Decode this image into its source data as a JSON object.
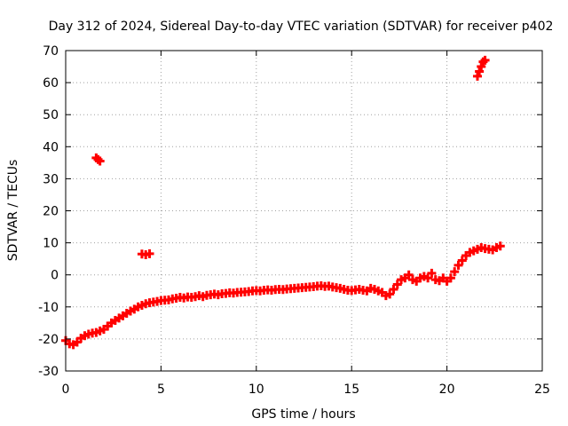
{
  "chart_data": {
    "type": "scatter",
    "title": "Day 312 of 2024, Sidereal Day-to-day VTEC variation (SDTVAR) for receiver p402",
    "xlabel": "GPS time / hours",
    "ylabel": "SDTVAR / TECUs",
    "xlim": [
      0,
      25
    ],
    "ylim": [
      -30,
      70
    ],
    "xticks": [
      0,
      5,
      10,
      15,
      20,
      25
    ],
    "yticks": [
      -30,
      -20,
      -10,
      0,
      10,
      20,
      30,
      40,
      50,
      60,
      70
    ],
    "grid": true,
    "series": [
      {
        "name": "SDTVAR",
        "color": "#ff0000",
        "points": [
          [
            0.0,
            -20.5
          ],
          [
            0.2,
            -21.5
          ],
          [
            0.4,
            -21.8
          ],
          [
            0.6,
            -21.0
          ],
          [
            0.8,
            -19.8
          ],
          [
            1.0,
            -19.0
          ],
          [
            1.2,
            -18.5
          ],
          [
            1.4,
            -18.2
          ],
          [
            1.6,
            -18.0
          ],
          [
            1.8,
            -17.5
          ],
          [
            2.0,
            -17.0
          ],
          [
            2.2,
            -16.0
          ],
          [
            2.4,
            -15.0
          ],
          [
            2.6,
            -14.2
          ],
          [
            2.8,
            -13.5
          ],
          [
            3.0,
            -12.8
          ],
          [
            3.2,
            -12.0
          ],
          [
            3.4,
            -11.3
          ],
          [
            3.6,
            -10.7
          ],
          [
            3.8,
            -10.0
          ],
          [
            4.0,
            -9.5
          ],
          [
            4.2,
            -9.0
          ],
          [
            4.4,
            -8.7
          ],
          [
            4.6,
            -8.5
          ],
          [
            4.8,
            -8.3
          ],
          [
            5.0,
            -8.0
          ],
          [
            5.2,
            -7.9
          ],
          [
            5.4,
            -7.8
          ],
          [
            5.6,
            -7.5
          ],
          [
            5.8,
            -7.3
          ],
          [
            6.0,
            -7.0
          ],
          [
            6.2,
            -7.2
          ],
          [
            6.4,
            -6.9
          ],
          [
            6.6,
            -7.0
          ],
          [
            6.8,
            -6.8
          ],
          [
            7.0,
            -6.5
          ],
          [
            7.2,
            -6.8
          ],
          [
            7.4,
            -6.4
          ],
          [
            7.6,
            -6.2
          ],
          [
            7.8,
            -6.0
          ],
          [
            8.0,
            -6.2
          ],
          [
            8.2,
            -5.9
          ],
          [
            8.4,
            -5.8
          ],
          [
            8.6,
            -5.6
          ],
          [
            8.8,
            -5.7
          ],
          [
            9.0,
            -5.5
          ],
          [
            9.2,
            -5.4
          ],
          [
            9.4,
            -5.3
          ],
          [
            9.6,
            -5.2
          ],
          [
            9.8,
            -5.0
          ],
          [
            10.0,
            -4.9
          ],
          [
            10.2,
            -5.0
          ],
          [
            10.4,
            -4.8
          ],
          [
            10.6,
            -4.7
          ],
          [
            10.8,
            -4.8
          ],
          [
            11.0,
            -4.6
          ],
          [
            11.2,
            -4.5
          ],
          [
            11.4,
            -4.6
          ],
          [
            11.6,
            -4.4
          ],
          [
            11.8,
            -4.3
          ],
          [
            12.0,
            -4.2
          ],
          [
            12.2,
            -4.1
          ],
          [
            12.4,
            -4.0
          ],
          [
            12.6,
            -3.9
          ],
          [
            12.8,
            -3.8
          ],
          [
            13.0,
            -3.7
          ],
          [
            13.2,
            -3.5
          ],
          [
            13.4,
            -3.4
          ],
          [
            13.6,
            -3.6
          ],
          [
            13.8,
            -3.5
          ],
          [
            14.0,
            -3.8
          ],
          [
            14.2,
            -4.0
          ],
          [
            14.4,
            -4.2
          ],
          [
            14.6,
            -4.5
          ],
          [
            14.8,
            -4.8
          ],
          [
            15.0,
            -4.9
          ],
          [
            15.2,
            -4.7
          ],
          [
            15.4,
            -4.5
          ],
          [
            15.6,
            -4.8
          ],
          [
            15.8,
            -5.0
          ],
          [
            16.0,
            -4.2
          ],
          [
            16.2,
            -4.5
          ],
          [
            16.4,
            -5.0
          ],
          [
            16.6,
            -5.5
          ],
          [
            16.8,
            -6.5
          ],
          [
            17.0,
            -6.0
          ],
          [
            17.2,
            -4.5
          ],
          [
            17.4,
            -3.0
          ],
          [
            17.6,
            -1.5
          ],
          [
            17.8,
            -1.0
          ],
          [
            18.0,
            0.0
          ],
          [
            18.2,
            -1.5
          ],
          [
            18.4,
            -2.0
          ],
          [
            18.6,
            -1.0
          ],
          [
            18.8,
            -0.5
          ],
          [
            19.0,
            -1.0
          ],
          [
            19.2,
            0.5
          ],
          [
            19.4,
            -1.5
          ],
          [
            19.6,
            -1.8
          ],
          [
            19.8,
            -1.0
          ],
          [
            20.0,
            -2.0
          ],
          [
            20.2,
            -1.0
          ],
          [
            20.4,
            1.0
          ],
          [
            20.6,
            3.0
          ],
          [
            20.8,
            4.5
          ],
          [
            21.0,
            6.0
          ],
          [
            21.2,
            7.0
          ],
          [
            21.4,
            7.5
          ],
          [
            21.6,
            8.0
          ],
          [
            21.8,
            8.5
          ],
          [
            22.0,
            8.2
          ],
          [
            22.2,
            8.0
          ],
          [
            22.4,
            7.8
          ],
          [
            22.6,
            8.5
          ],
          [
            22.8,
            9.0
          ],
          [
            1.6,
            36.5
          ],
          [
            1.7,
            36.0
          ],
          [
            1.8,
            35.5
          ],
          [
            4.0,
            6.5
          ],
          [
            4.2,
            6.3
          ],
          [
            4.4,
            6.6
          ],
          [
            21.6,
            62.0
          ],
          [
            21.7,
            63.5
          ],
          [
            21.8,
            65.0
          ],
          [
            21.9,
            66.5
          ],
          [
            22.0,
            67.0
          ]
        ]
      }
    ]
  }
}
